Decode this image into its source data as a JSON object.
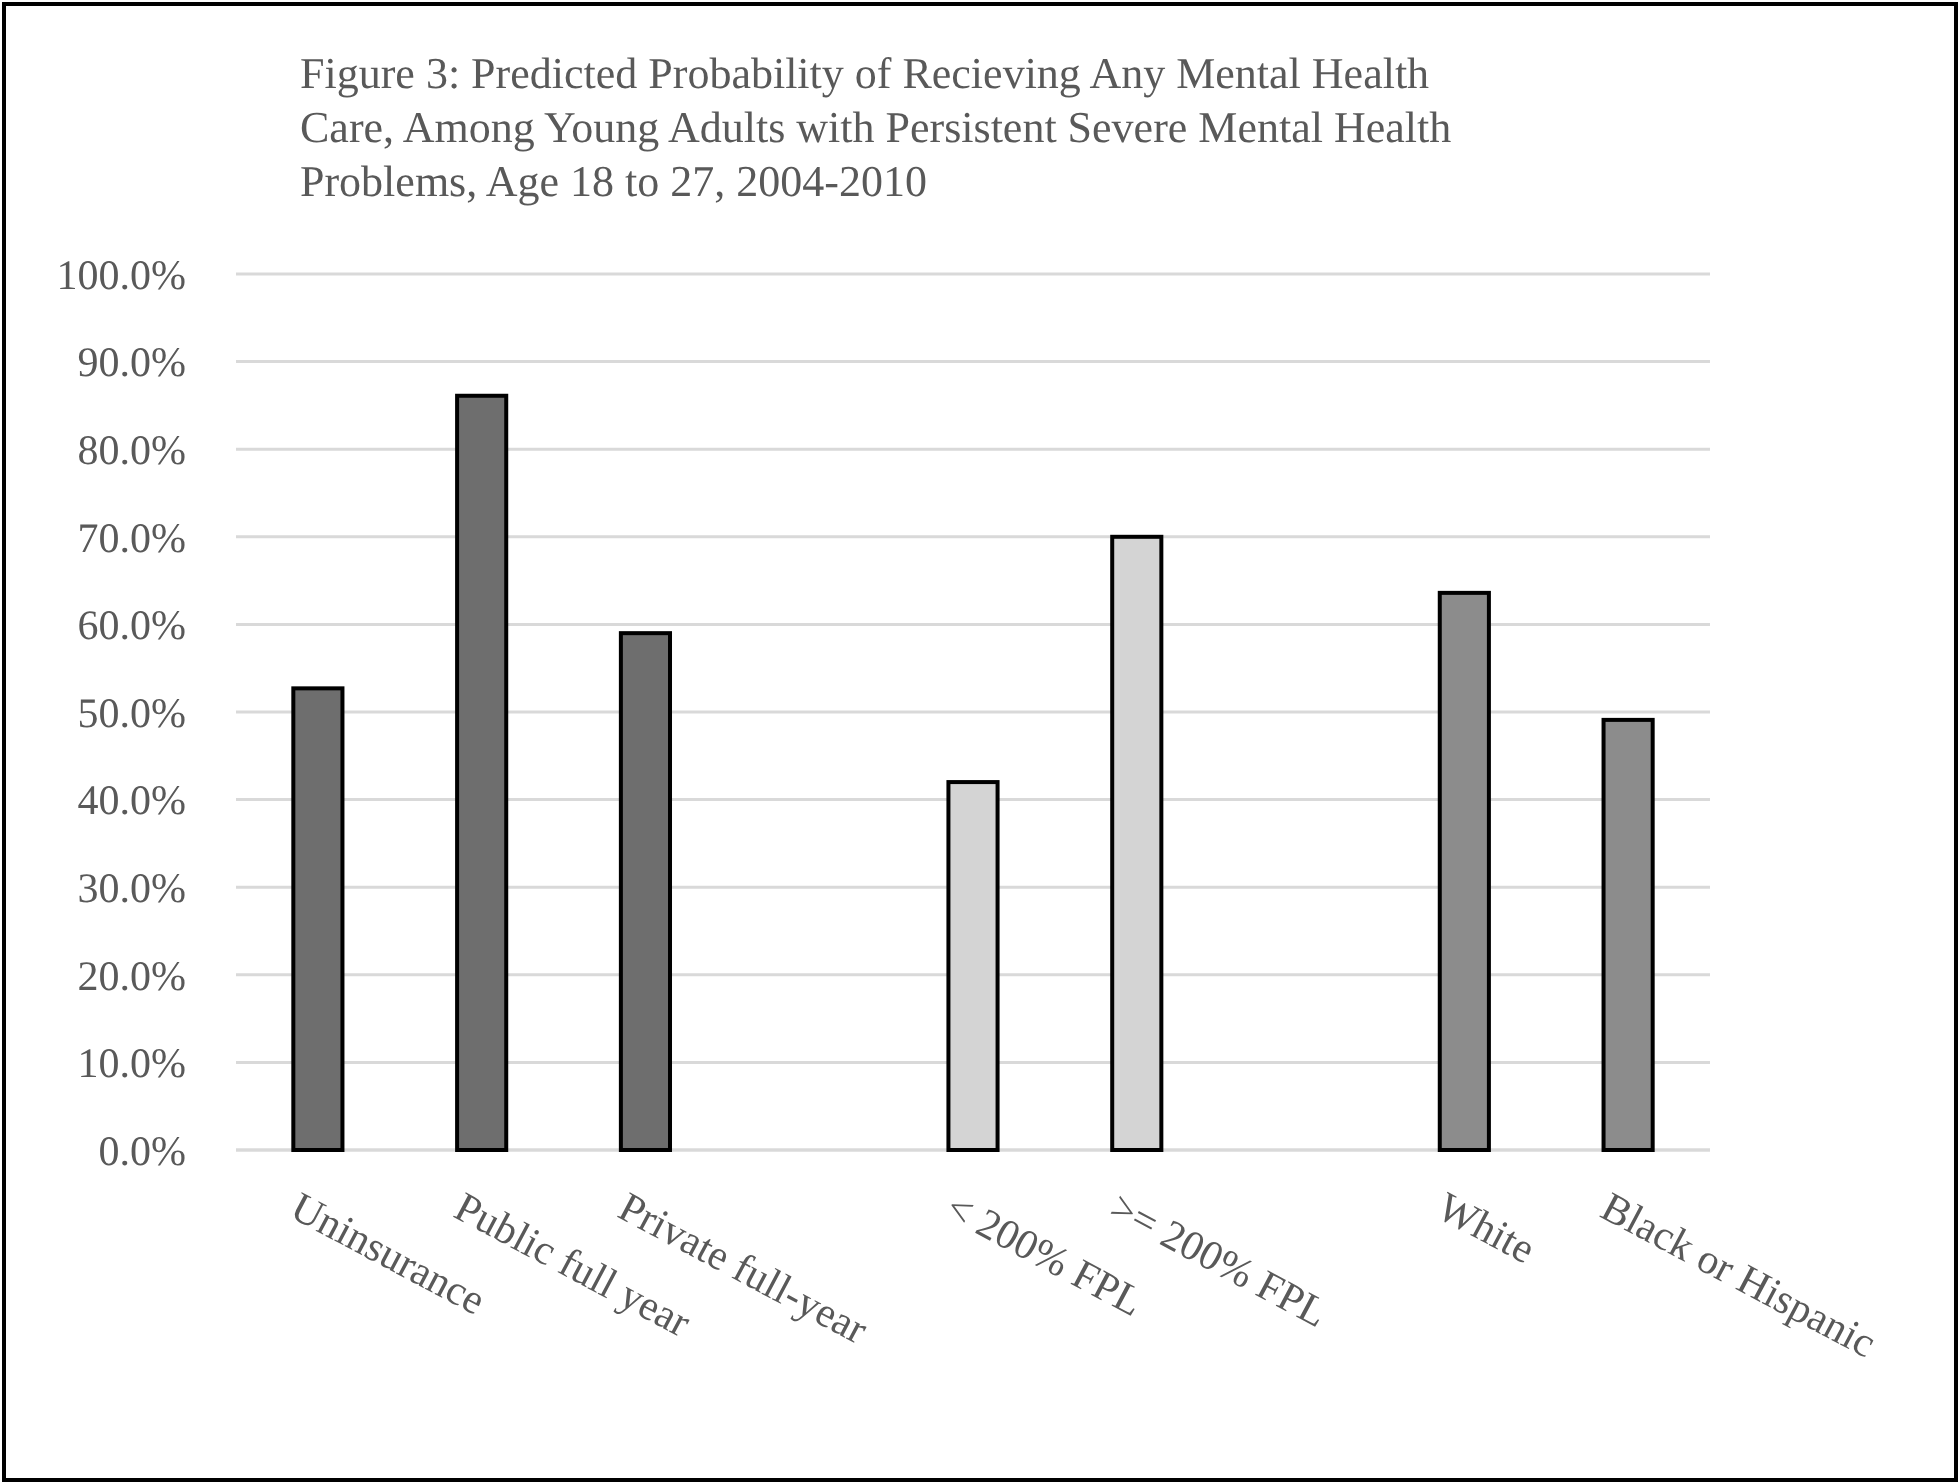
{
  "chart_data": {
    "type": "bar",
    "title": "Figure 3: Predicted Probability of Recieving Any Mental Health Care, Among Young Adults with Persistent Severe Mental Health Problems, Age 18 to 27, 2004-2010",
    "categories": [
      "Uninsurance",
      "Public full year",
      "Private full-year",
      null,
      "< 200% FPL",
      ">= 200% FPL",
      null,
      "White",
      "Black or Hispanic"
    ],
    "values": [
      52.7,
      86.1,
      59.0,
      null,
      42.0,
      70.0,
      null,
      63.6,
      49.1
    ],
    "colors": [
      "#6e6e6e",
      "#6e6e6e",
      "#6e6e6e",
      null,
      "#d4d4d4",
      "#d4d4d4",
      null,
      "#8c8c8c",
      "#8c8c8c"
    ],
    "ylim": [
      0,
      100
    ],
    "yticks": [
      {
        "value": 0,
        "label": "0.0%"
      },
      {
        "value": 10,
        "label": "10.0%"
      },
      {
        "value": 20,
        "label": "20.0%"
      },
      {
        "value": 30,
        "label": "30.0%"
      },
      {
        "value": 40,
        "label": "40.0%"
      },
      {
        "value": 50,
        "label": "50.0%"
      },
      {
        "value": 60,
        "label": "60.0%"
      },
      {
        "value": 70,
        "label": "70.0%"
      },
      {
        "value": 80,
        "label": "80.0%"
      },
      {
        "value": 90,
        "label": "90.0%"
      },
      {
        "value": 100,
        "label": "100.0%"
      }
    ],
    "grid": "y"
  }
}
